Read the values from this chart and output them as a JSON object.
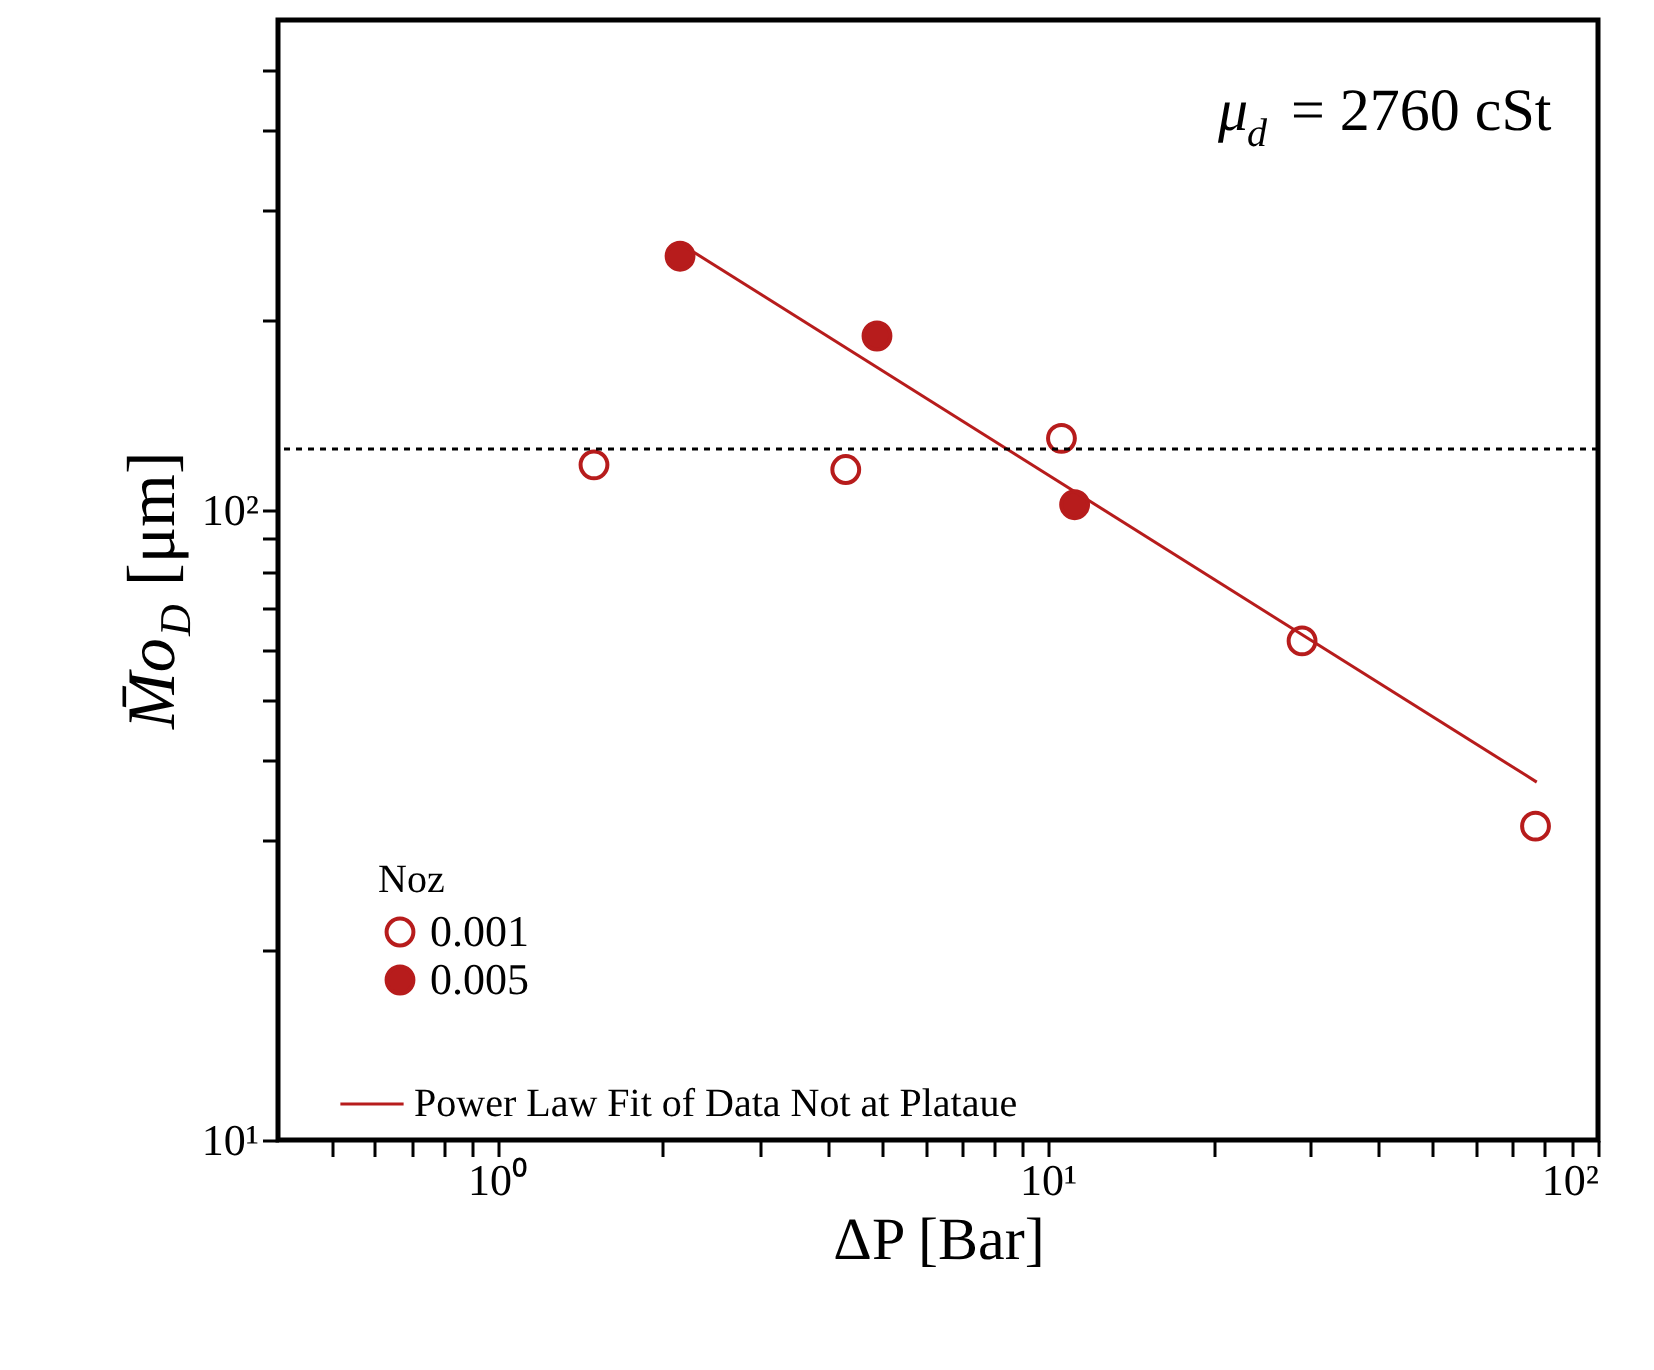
{
  "chart_data": {
    "type": "scatter",
    "xlabel": "ΔP [Bar]",
    "ylabel": "M̄o$_{D}$ [μm]",
    "legend_title": "Noz",
    "log": "xy",
    "grid": false,
    "legend": "bottom left",
    "xlim": [
      0.4,
      100
    ],
    "ylim": [
      10,
      600
    ],
    "xticks": [
      {
        "value": 0.5,
        "label": null
      },
      {
        "value": 0.6,
        "label": null
      },
      {
        "value": 0.7,
        "label": null
      },
      {
        "value": 0.8,
        "label": null
      },
      {
        "value": 0.9,
        "label": null
      },
      {
        "value": 1,
        "label": "10⁰"
      },
      {
        "value": 2,
        "label": null
      },
      {
        "value": 3,
        "label": null
      },
      {
        "value": 4,
        "label": null
      },
      {
        "value": 5,
        "label": null
      },
      {
        "value": 6,
        "label": null
      },
      {
        "value": 7,
        "label": null
      },
      {
        "value": 8,
        "label": null
      },
      {
        "value": 9,
        "label": null
      },
      {
        "value": 10,
        "label": "10¹"
      },
      {
        "value": 20,
        "label": null
      },
      {
        "value": 30,
        "label": null
      },
      {
        "value": 40,
        "label": null
      },
      {
        "value": 50,
        "label": null
      },
      {
        "value": 60,
        "label": null
      },
      {
        "value": 70,
        "label": null
      },
      {
        "value": 80,
        "label": null
      },
      {
        "value": 90,
        "label": null
      },
      {
        "value": 100,
        "label": "10²"
      }
    ],
    "yticks": [
      {
        "value": 10,
        "label": "10¹"
      },
      {
        "value": 20,
        "label": null
      },
      {
        "value": 30,
        "label": null
      },
      {
        "value": 40,
        "label": null
      },
      {
        "value": 50,
        "label": null
      },
      {
        "value": 60,
        "label": null
      },
      {
        "value": 70,
        "label": null
      },
      {
        "value": 80,
        "label": null
      },
      {
        "value": 90,
        "label": null
      },
      {
        "value": 100,
        "label": "10²"
      },
      {
        "value": 200,
        "label": null
      },
      {
        "value": 300,
        "label": null
      },
      {
        "value": 400,
        "label": null
      },
      {
        "value": 500,
        "label": null
      }
    ],
    "series": [
      {
        "name": "0.001",
        "color": "#b71c1c",
        "marker": "circle",
        "x": [
          1.5,
          4.3,
          10.6,
          29,
          77
        ],
        "values": [
          118,
          116,
          130,
          62,
          31.5
        ]
      },
      {
        "name": "0.005",
        "color": "#b71c1c",
        "marker": "circle",
        "x": [
          2.15,
          4.9,
          11.2
        ],
        "values": [
          253,
          189,
          102
        ]
      },
      {
        "name": "Power Law Fit of Data Not at Plataue",
        "type": "line",
        "color": "#b71c1c",
        "line_style": "solid",
        "marker": "none",
        "x": [
          2.15,
          77.4
        ],
        "values": [
          265,
          37
        ]
      }
    ],
    "ref_lines": [
      {
        "axis": "y",
        "value": 125,
        "color": "#000000",
        "line_style": "dotted"
      }
    ],
    "annotations": [
      "μ$_{d}$ = 2760 cSt"
    ]
  }
}
